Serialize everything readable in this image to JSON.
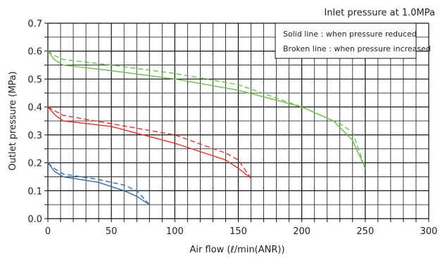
{
  "chart_data": {
    "type": "line",
    "title": "Inlet pressure at 1.0MPa",
    "xlabel": "Air flow (ℓ/min(ANR))",
    "ylabel": "Outlet pressure (MPa)",
    "xlim": [
      0,
      300
    ],
    "ylim": [
      0,
      0.7
    ],
    "x_ticks": [
      0,
      50,
      100,
      150,
      200,
      250,
      300
    ],
    "y_ticks": [
      0.0,
      0.1,
      0.2,
      0.3,
      0.4,
      0.5,
      0.6,
      0.7
    ],
    "x_tick_labels": [
      "0",
      "50",
      "100",
      "150",
      "200",
      "250",
      "300"
    ],
    "y_tick_labels": [
      "0.0",
      "0.1",
      "0.2",
      "0.3",
      "0.4",
      "0.5",
      "0.6",
      "0.7"
    ],
    "grid": true,
    "legend": {
      "placement": "top-right",
      "entries": [
        "Solid line : when pressure reduced",
        "Broken line : when pressure increased"
      ]
    },
    "colors": {
      "green": "#6abf45",
      "red": "#e8302a",
      "blue": "#2e6fb3",
      "grid": "#111111"
    },
    "series": [
      {
        "color": "green",
        "style": "solid",
        "x": [
          0,
          5,
          12,
          50,
          100,
          150,
          200,
          225,
          240,
          250
        ],
        "y": [
          0.6,
          0.57,
          0.55,
          0.53,
          0.5,
          0.46,
          0.4,
          0.35,
          0.28,
          0.18
        ]
      },
      {
        "color": "green",
        "style": "dashed",
        "x": [
          0,
          5,
          12,
          50,
          100,
          150,
          200,
          230,
          240,
          250
        ],
        "y": [
          0.6,
          0.585,
          0.57,
          0.55,
          0.52,
          0.48,
          0.4,
          0.34,
          0.31,
          0.18
        ]
      },
      {
        "color": "red",
        "style": "solid",
        "x": [
          0,
          6,
          12,
          50,
          100,
          140,
          150,
          160
        ],
        "y": [
          0.4,
          0.37,
          0.35,
          0.33,
          0.27,
          0.21,
          0.18,
          0.145
        ]
      },
      {
        "color": "red",
        "style": "dashed",
        "x": [
          0,
          6,
          12,
          50,
          100,
          140,
          150,
          160
        ],
        "y": [
          0.4,
          0.385,
          0.37,
          0.34,
          0.3,
          0.235,
          0.21,
          0.145
        ]
      },
      {
        "color": "blue",
        "style": "solid",
        "x": [
          0,
          5,
          12,
          40,
          60,
          70,
          80
        ],
        "y": [
          0.2,
          0.17,
          0.15,
          0.13,
          0.1,
          0.08,
          0.05
        ]
      },
      {
        "color": "blue",
        "style": "dashed",
        "x": [
          0,
          5,
          12,
          40,
          60,
          70,
          80
        ],
        "y": [
          0.2,
          0.18,
          0.16,
          0.14,
          0.12,
          0.1,
          0.05
        ]
      }
    ]
  }
}
